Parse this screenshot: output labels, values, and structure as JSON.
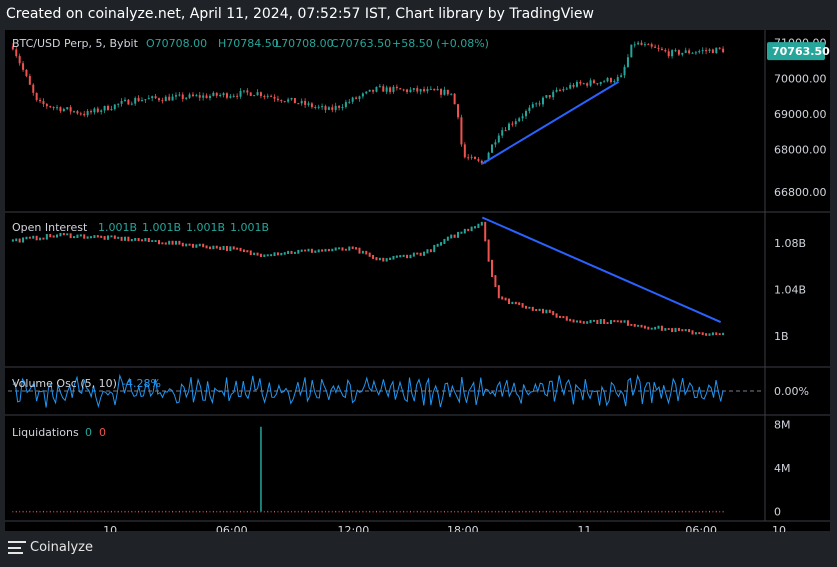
{
  "header": {
    "caption": "Created on coinalyze.net, April 11, 2024, 07:52:57 IST, Chart library by TradingView"
  },
  "footer": {
    "brand": "Coinalyze"
  },
  "colors": {
    "up": "#26a69a",
    "down": "#ef5350",
    "trend": "#2962ff",
    "osc": "#2196f3",
    "text": "#d1d4dc",
    "bg": "#000000"
  },
  "chart_data": [
    {
      "type": "candlestick",
      "symbol": "BTC/USD Perp, 5, Bybit",
      "ohlc": {
        "o": "O70708.00",
        "h": "H70784.50",
        "l": "L70708.00",
        "c": "C70763.50",
        "chg": "+58.50 (+0.08%)"
      },
      "last_price": "70763.50",
      "y_ticks": [
        "71000.00",
        "70000.00",
        "69000.00",
        "68000.00",
        "66800.00"
      ],
      "y_tick_values": [
        71000,
        70000,
        69000,
        68000,
        66800
      ],
      "ylim": [
        66300,
        71300
      ],
      "trend_line": [
        [
          19.3,
          67600
        ],
        [
          24.9,
          69900
        ]
      ],
      "key_points": [
        [
          0,
          70900
        ],
        [
          1,
          69300
        ],
        [
          3,
          69000
        ],
        [
          5,
          69400
        ],
        [
          8,
          69500
        ],
        [
          10,
          69600
        ],
        [
          13,
          69100
        ],
        [
          15,
          69700
        ],
        [
          18,
          69600
        ],
        [
          18.3,
          69000
        ],
        [
          18.5,
          67800
        ],
        [
          19.3,
          67600
        ],
        [
          20,
          68500
        ],
        [
          22,
          69500
        ],
        [
          23,
          69800
        ],
        [
          25,
          70000
        ],
        [
          25.5,
          71000
        ],
        [
          27,
          70700
        ],
        [
          29,
          70800
        ]
      ]
    },
    {
      "type": "line",
      "name": "Open Interest",
      "values_text": [
        "1.001B",
        "1.001B",
        "1.001B",
        "1.001B"
      ],
      "y_ticks": [
        "1.08B",
        "1.04B",
        "1B"
      ],
      "y_tick_values": [
        1.08,
        1.04,
        1.0
      ],
      "ylim": [
        0.975,
        1.105
      ],
      "trend_line": [
        [
          19.3,
          1.102
        ],
        [
          29.1,
          1.012
        ]
      ],
      "key_points": [
        [
          0,
          1.082
        ],
        [
          2,
          1.087
        ],
        [
          5,
          1.083
        ],
        [
          9,
          1.075
        ],
        [
          10,
          1.07
        ],
        [
          12,
          1.073
        ],
        [
          14,
          1.075
        ],
        [
          15,
          1.065
        ],
        [
          17,
          1.072
        ],
        [
          18,
          1.085
        ],
        [
          19.3,
          1.098
        ],
        [
          19.6,
          1.06
        ],
        [
          20,
          1.032
        ],
        [
          22,
          1.02
        ],
        [
          23,
          1.013
        ],
        [
          25,
          1.012
        ],
        [
          26,
          1.008
        ],
        [
          28,
          1.003
        ],
        [
          29,
          1.001
        ]
      ]
    },
    {
      "type": "line",
      "name": "Volume Osc (5, 10)",
      "value_text": "-4.28%",
      "y_ticks": [
        "0.00%"
      ],
      "y_tick_values": [
        0
      ],
      "ylim": [
        -50,
        50
      ]
    },
    {
      "type": "bar",
      "name": "Liquidations",
      "values_text": [
        "0",
        "0"
      ],
      "y_ticks": [
        "8M",
        "4M",
        "0"
      ],
      "y_tick_values": [
        8,
        4,
        0
      ],
      "ylim": [
        -0.7,
        8.7
      ],
      "spike": {
        "x": 10.2,
        "value": 7.8
      }
    }
  ],
  "x_axis": {
    "range": [
      -0.2,
      30.8
    ],
    "ticks": [
      {
        "label": "10",
        "value": 4
      },
      {
        "label": "06:00",
        "value": 9
      },
      {
        "label": "12:00",
        "value": 14
      },
      {
        "label": "18:00",
        "value": 18.5
      },
      {
        "label": "11",
        "value": 23.5
      },
      {
        "label": "06:00",
        "value": 28.3
      },
      {
        "label": "10",
        "value": 31.5
      }
    ]
  }
}
